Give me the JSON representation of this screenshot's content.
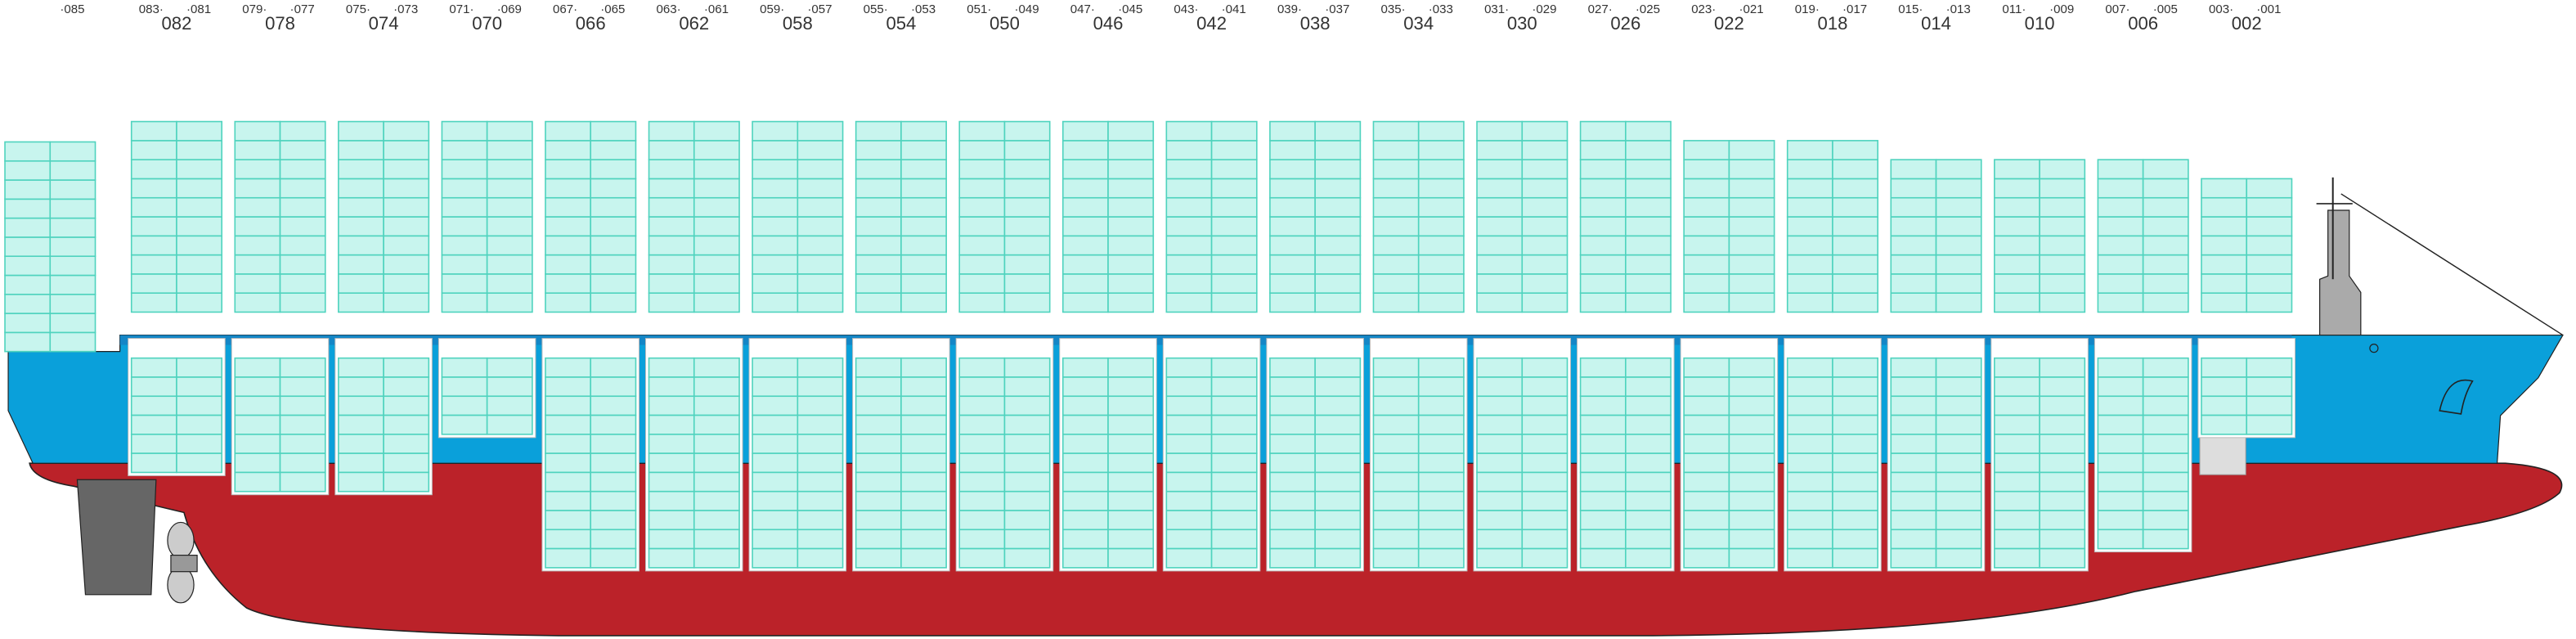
{
  "aft_end_label": "·085",
  "bays": [
    {
      "fore": "083·",
      "aft": "·081",
      "label": "082"
    },
    {
      "fore": "079·",
      "aft": "·077",
      "label": "078"
    },
    {
      "fore": "075·",
      "aft": "·073",
      "label": "074"
    },
    {
      "fore": "071·",
      "aft": "·069",
      "label": "070"
    },
    {
      "fore": "067·",
      "aft": "·065",
      "label": "066"
    },
    {
      "fore": "063·",
      "aft": "·061",
      "label": "062"
    },
    {
      "fore": "059·",
      "aft": "·057",
      "label": "058"
    },
    {
      "fore": "055·",
      "aft": "·053",
      "label": "054"
    },
    {
      "fore": "051·",
      "aft": "·049",
      "label": "050"
    },
    {
      "fore": "047·",
      "aft": "·045",
      "label": "046"
    },
    {
      "fore": "043·",
      "aft": "·041",
      "label": "042"
    },
    {
      "fore": "039·",
      "aft": "·037",
      "label": "038"
    },
    {
      "fore": "035·",
      "aft": "·033",
      "label": "034"
    },
    {
      "fore": "031·",
      "aft": "·029",
      "label": "030"
    },
    {
      "fore": "027·",
      "aft": "·025",
      "label": "026"
    },
    {
      "fore": "023·",
      "aft": "·021",
      "label": "022"
    },
    {
      "fore": "019·",
      "aft": "·017",
      "label": "018"
    },
    {
      "fore": "015·",
      "aft": "·013",
      "label": "014"
    },
    {
      "fore": "011·",
      "aft": "·009",
      "label": "010"
    },
    {
      "fore": "007·",
      "aft": "·005",
      "label": "006"
    },
    {
      "fore": "003·",
      "aft": "·001",
      "label": "002"
    }
  ]
}
